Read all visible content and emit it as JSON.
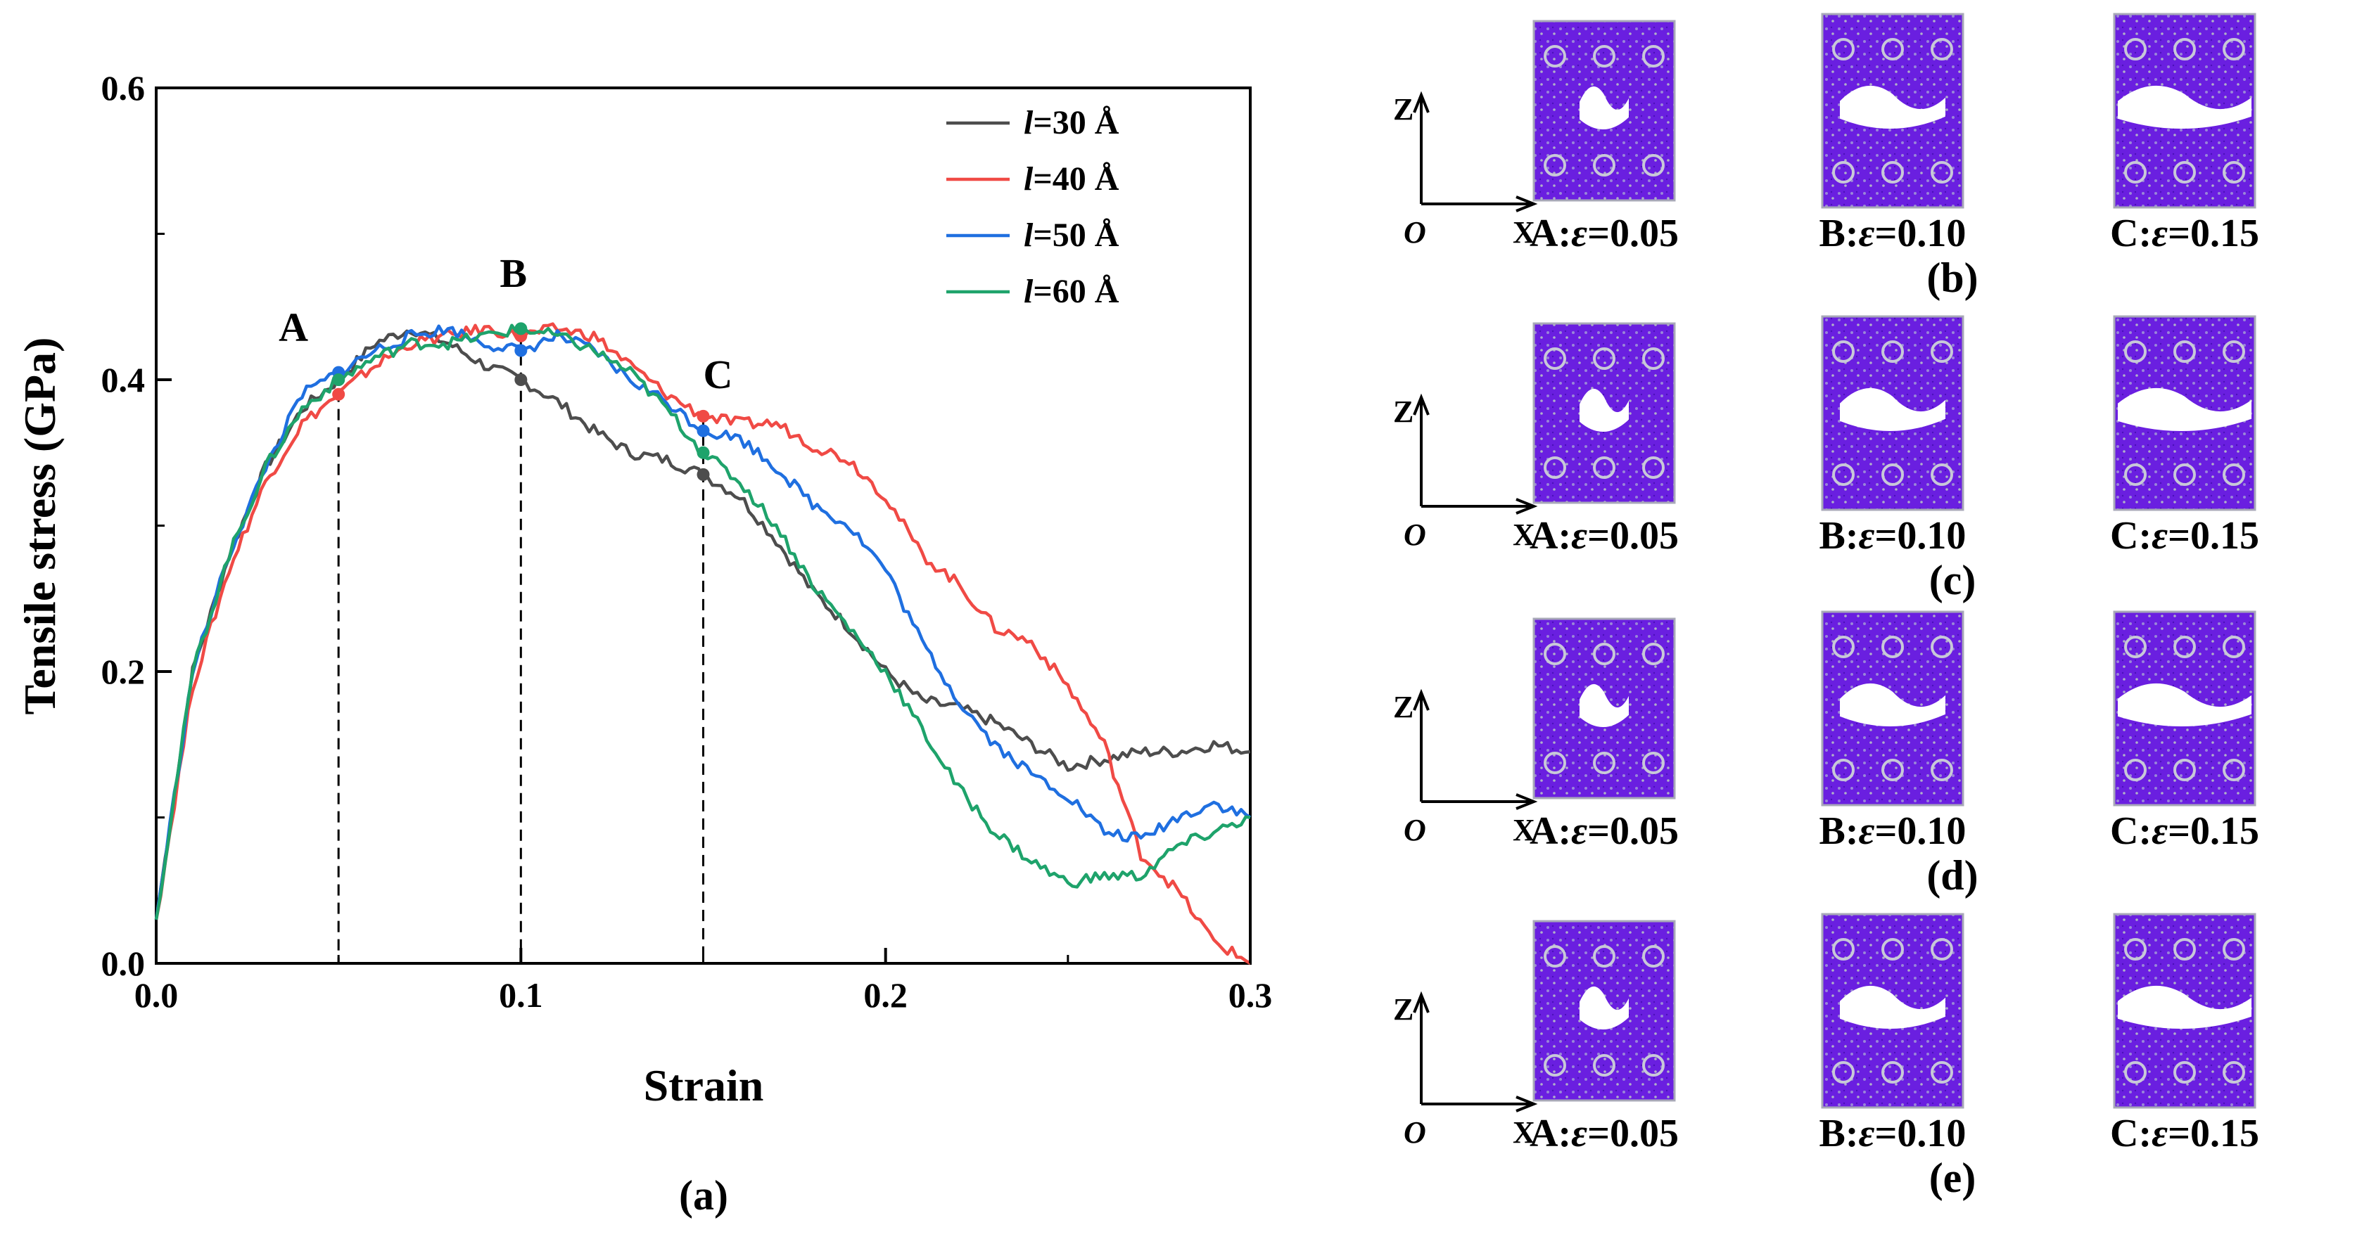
{
  "chart_data": {
    "type": "line",
    "panel_label": "(a)",
    "xlabel": "Strain",
    "ylabel": "Tensile stress (GPa)",
    "xlim": [
      0,
      0.3
    ],
    "ylim": [
      0,
      0.6
    ],
    "xticks": [
      0.0,
      0.1,
      0.2,
      0.3
    ],
    "xtick_labels": [
      "0.0",
      "0.1",
      "0.2",
      "0.3"
    ],
    "yticks": [
      0.0,
      0.2,
      0.4,
      0.6
    ],
    "ytick_labels": [
      "0.0",
      "0.2",
      "0.4",
      "0.6"
    ],
    "legend_position": "top-right",
    "series": [
      {
        "name_prefix": "l",
        "name_suffix": "=30 Å",
        "color": "#4d4d4d",
        "x": [
          0,
          0.01,
          0.02,
          0.03,
          0.04,
          0.05,
          0.06,
          0.07,
          0.08,
          0.09,
          0.1,
          0.11,
          0.12,
          0.13,
          0.14,
          0.15,
          0.16,
          0.17,
          0.18,
          0.19,
          0.2,
          0.21,
          0.22,
          0.23,
          0.24,
          0.25,
          0.26,
          0.27,
          0.28,
          0.29,
          0.3
        ],
        "y": [
          0.03,
          0.2,
          0.28,
          0.34,
          0.38,
          0.4,
          0.425,
          0.435,
          0.425,
          0.41,
          0.4,
          0.385,
          0.365,
          0.35,
          0.345,
          0.335,
          0.32,
          0.29,
          0.255,
          0.23,
          0.2,
          0.18,
          0.175,
          0.165,
          0.15,
          0.135,
          0.14,
          0.145,
          0.145,
          0.15,
          0.145
        ]
      },
      {
        "name_prefix": "l",
        "name_suffix": "=40 Å",
        "color": "#f04a45",
        "x": [
          0,
          0.01,
          0.02,
          0.03,
          0.04,
          0.05,
          0.06,
          0.07,
          0.08,
          0.09,
          0.1,
          0.11,
          0.12,
          0.13,
          0.14,
          0.15,
          0.16,
          0.17,
          0.18,
          0.19,
          0.2,
          0.21,
          0.22,
          0.23,
          0.24,
          0.25,
          0.26,
          0.27,
          0.28,
          0.29,
          0.3
        ],
        "y": [
          0.03,
          0.19,
          0.27,
          0.33,
          0.37,
          0.39,
          0.41,
          0.425,
          0.43,
          0.435,
          0.43,
          0.435,
          0.43,
          0.41,
          0.39,
          0.375,
          0.37,
          0.37,
          0.355,
          0.345,
          0.32,
          0.28,
          0.26,
          0.23,
          0.22,
          0.19,
          0.15,
          0.075,
          0.05,
          0.015,
          0.0
        ]
      },
      {
        "name_prefix": "l",
        "name_suffix": "=50 Å",
        "color": "#1f6fe0",
        "x": [
          0,
          0.01,
          0.02,
          0.03,
          0.04,
          0.05,
          0.06,
          0.07,
          0.08,
          0.09,
          0.1,
          0.11,
          0.12,
          0.13,
          0.14,
          0.15,
          0.16,
          0.17,
          0.18,
          0.19,
          0.2,
          0.21,
          0.22,
          0.23,
          0.24,
          0.25,
          0.26,
          0.27,
          0.28,
          0.29,
          0.3
        ],
        "y": [
          0.03,
          0.2,
          0.28,
          0.34,
          0.39,
          0.405,
          0.42,
          0.43,
          0.435,
          0.425,
          0.42,
          0.43,
          0.42,
          0.4,
          0.385,
          0.365,
          0.36,
          0.34,
          0.315,
          0.3,
          0.27,
          0.22,
          0.18,
          0.15,
          0.13,
          0.115,
          0.09,
          0.085,
          0.1,
          0.11,
          0.1
        ]
      },
      {
        "name_prefix": "l",
        "name_suffix": "=60 Å",
        "color": "#1ea36b",
        "x": [
          0,
          0.01,
          0.02,
          0.03,
          0.04,
          0.05,
          0.06,
          0.07,
          0.08,
          0.09,
          0.1,
          0.11,
          0.12,
          0.13,
          0.14,
          0.15,
          0.16,
          0.17,
          0.18,
          0.19,
          0.2,
          0.21,
          0.22,
          0.23,
          0.24,
          0.25,
          0.26,
          0.27,
          0.28,
          0.29,
          0.3
        ],
        "y": [
          0.03,
          0.2,
          0.28,
          0.34,
          0.38,
          0.4,
          0.415,
          0.425,
          0.425,
          0.43,
          0.435,
          0.43,
          0.42,
          0.405,
          0.38,
          0.35,
          0.33,
          0.3,
          0.26,
          0.23,
          0.2,
          0.16,
          0.12,
          0.09,
          0.07,
          0.055,
          0.06,
          0.06,
          0.08,
          0.09,
          0.1
        ]
      }
    ],
    "annotations": [
      {
        "label": "A",
        "x": 0.05,
        "marker_y": 0.405
      },
      {
        "label": "B",
        "x": 0.1,
        "marker_y": 0.43
      },
      {
        "label": "C",
        "x": 0.15,
        "marker_y": 0.375
      }
    ]
  },
  "snapshot_panels": [
    {
      "panel_label": "(b)",
      "labels": [
        {
          "prefix": "A:",
          "var": "ε",
          "value": "=0.05"
        },
        {
          "prefix": "B:",
          "var": "ε",
          "value": "=0.10"
        },
        {
          "prefix": "C:",
          "var": "ε",
          "value": "=0.15"
        }
      ]
    },
    {
      "panel_label": "(c)",
      "labels": [
        {
          "prefix": "A:",
          "var": "ε",
          "value": "=0.05"
        },
        {
          "prefix": "B:",
          "var": "ε",
          "value": "=0.10"
        },
        {
          "prefix": "C:",
          "var": "ε",
          "value": "=0.15"
        }
      ]
    },
    {
      "panel_label": "(d)",
      "labels": [
        {
          "prefix": "A:",
          "var": "ε",
          "value": "=0.05"
        },
        {
          "prefix": "B:",
          "var": "ε",
          "value": "=0.10"
        },
        {
          "prefix": "C:",
          "var": "ε",
          "value": "=0.15"
        }
      ]
    },
    {
      "panel_label": "(e)",
      "labels": [
        {
          "prefix": "A:",
          "var": "ε",
          "value": "=0.05"
        },
        {
          "prefix": "B:",
          "var": "ε",
          "value": "=0.10"
        },
        {
          "prefix": "C:",
          "var": "ε",
          "value": "=0.15"
        }
      ]
    }
  ],
  "axis_indicator": {
    "z_label": "Z",
    "x_label": "X",
    "origin_label": "O"
  },
  "colors": {
    "atom": "#6a1fe0",
    "void": "#ffffff"
  }
}
